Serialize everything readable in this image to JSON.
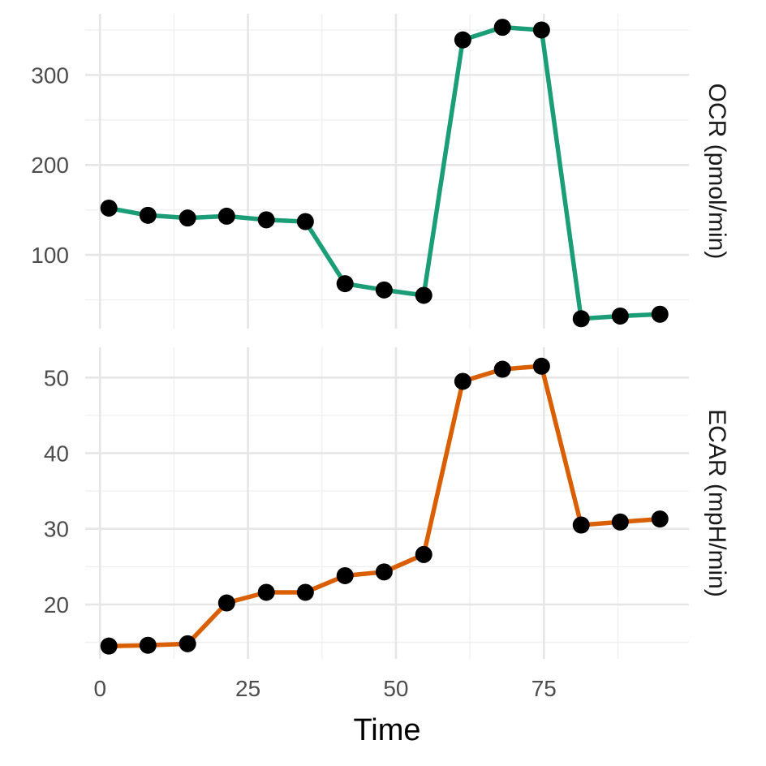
{
  "chart_data": {
    "type": "line",
    "xlabel": "Time",
    "x_ticks": [
      0,
      25,
      50,
      75
    ],
    "xlim": [
      -2.5,
      99.5
    ],
    "grid": true,
    "panels": [
      {
        "strip_label": "OCR (pmol/min)",
        "color": "#1b9e77",
        "ylim": [
          18,
          368
        ],
        "y_ticks": [
          100,
          200,
          300
        ],
        "x": [
          1.5,
          8.1,
          14.8,
          21.4,
          28.1,
          34.7,
          41.4,
          48,
          54.7,
          61.3,
          68,
          74.6,
          81.3,
          87.9,
          94.6
        ],
        "y": [
          152,
          144,
          141,
          143,
          139,
          137,
          68,
          61,
          55,
          339,
          353,
          350,
          29,
          32,
          34
        ]
      },
      {
        "strip_label": "ECAR (mpH/min)",
        "color": "#d95f02",
        "ylim": [
          12.8,
          54
        ],
        "y_ticks": [
          20,
          30,
          40,
          50
        ],
        "x": [
          1.5,
          8.1,
          14.8,
          21.4,
          28.1,
          34.7,
          41.4,
          48,
          54.7,
          61.3,
          68,
          74.6,
          81.3,
          87.9,
          94.6
        ],
        "y": [
          14.5,
          14.6,
          14.8,
          20.2,
          21.6,
          21.6,
          23.8,
          24.3,
          26.6,
          49.5,
          51.1,
          51.5,
          30.5,
          30.9,
          31.3
        ]
      }
    ]
  }
}
